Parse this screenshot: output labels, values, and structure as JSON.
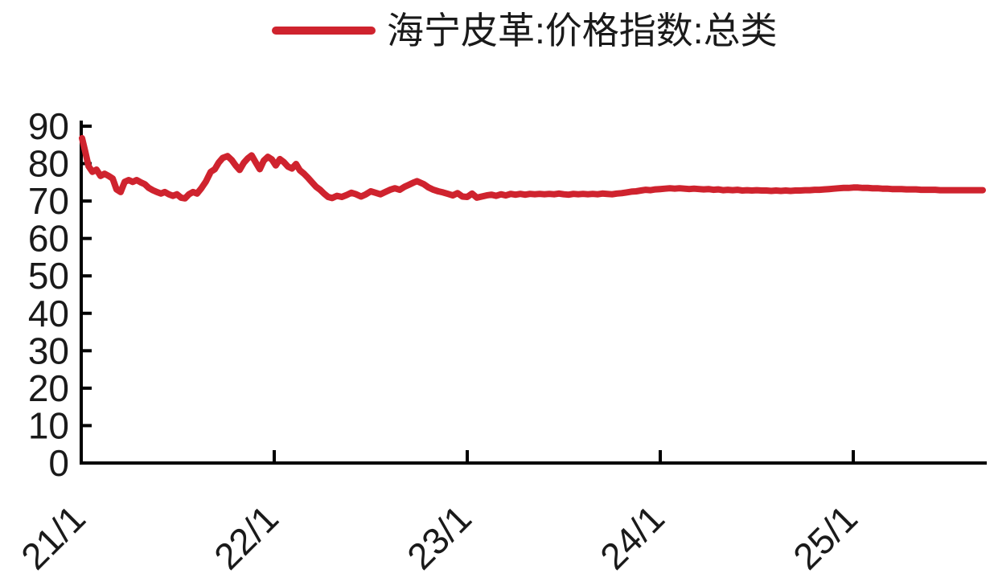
{
  "legend": {
    "label": "海宁皮革:价格指数:总类"
  },
  "colors": {
    "line": "#cf232e",
    "axis": "#000000",
    "text": "#1a1a1a",
    "background": "#ffffff"
  },
  "chart_data": {
    "type": "line",
    "title": "",
    "legend_position": "top-center",
    "grid": false,
    "x_axis": {
      "unit": "years since Jan 2021 (tick labels are year/month)",
      "range": [
        0,
        4.68
      ],
      "ticks": [
        {
          "t": 0,
          "label": "21/1"
        },
        {
          "t": 1,
          "label": "22/1"
        },
        {
          "t": 2,
          "label": "23/1"
        },
        {
          "t": 3,
          "label": "24/1"
        },
        {
          "t": 4,
          "label": "25/1"
        }
      ]
    },
    "y_axis": {
      "range": [
        0,
        90
      ],
      "tick_step": 10,
      "ticks": [
        0,
        10,
        20,
        30,
        40,
        50,
        60,
        70,
        80,
        90
      ]
    },
    "series": [
      {
        "name": "海宁皮革:价格指数:总类",
        "color": "#cf232e",
        "points": [
          [
            0.004,
            86.8
          ],
          [
            0.021,
            83.2
          ],
          [
            0.038,
            79.3
          ],
          [
            0.058,
            77.8
          ],
          [
            0.079,
            78.4
          ],
          [
            0.1,
            76.7
          ],
          [
            0.121,
            77.3
          ],
          [
            0.142,
            76.7
          ],
          [
            0.163,
            76.0
          ],
          [
            0.183,
            73.1
          ],
          [
            0.204,
            72.4
          ],
          [
            0.225,
            75.1
          ],
          [
            0.246,
            75.6
          ],
          [
            0.267,
            75.1
          ],
          [
            0.287,
            75.6
          ],
          [
            0.308,
            75.0
          ],
          [
            0.329,
            74.5
          ],
          [
            0.35,
            73.5
          ],
          [
            0.371,
            72.9
          ],
          [
            0.392,
            72.4
          ],
          [
            0.413,
            72.0
          ],
          [
            0.433,
            72.4
          ],
          [
            0.454,
            71.8
          ],
          [
            0.475,
            71.4
          ],
          [
            0.496,
            71.8
          ],
          [
            0.517,
            70.9
          ],
          [
            0.538,
            70.7
          ],
          [
            0.558,
            71.8
          ],
          [
            0.579,
            72.4
          ],
          [
            0.6,
            72.0
          ],
          [
            0.621,
            73.3
          ],
          [
            0.646,
            75.2
          ],
          [
            0.671,
            77.8
          ],
          [
            0.692,
            78.5
          ],
          [
            0.713,
            80.3
          ],
          [
            0.733,
            81.5
          ],
          [
            0.758,
            82.0
          ],
          [
            0.779,
            81.0
          ],
          [
            0.8,
            79.5
          ],
          [
            0.821,
            78.3
          ],
          [
            0.842,
            80.2
          ],
          [
            0.863,
            81.4
          ],
          [
            0.883,
            82.2
          ],
          [
            0.904,
            80.3
          ],
          [
            0.925,
            78.5
          ],
          [
            0.946,
            80.8
          ],
          [
            0.967,
            81.8
          ],
          [
            0.988,
            81.1
          ],
          [
            1.008,
            79.5
          ],
          [
            1.029,
            81.2
          ],
          [
            1.05,
            80.4
          ],
          [
            1.071,
            79.2
          ],
          [
            1.092,
            78.7
          ],
          [
            1.113,
            79.9
          ],
          [
            1.133,
            78.2
          ],
          [
            1.154,
            77.3
          ],
          [
            1.175,
            76.2
          ],
          [
            1.196,
            75.0
          ],
          [
            1.217,
            73.8
          ],
          [
            1.238,
            73.0
          ],
          [
            1.258,
            72.0
          ],
          [
            1.279,
            71.1
          ],
          [
            1.3,
            70.8
          ],
          [
            1.325,
            71.4
          ],
          [
            1.35,
            71.1
          ],
          [
            1.375,
            71.6
          ],
          [
            1.4,
            72.2
          ],
          [
            1.425,
            71.8
          ],
          [
            1.45,
            71.2
          ],
          [
            1.475,
            71.8
          ],
          [
            1.5,
            72.6
          ],
          [
            1.525,
            72.2
          ],
          [
            1.55,
            71.8
          ],
          [
            1.575,
            72.4
          ],
          [
            1.6,
            73.0
          ],
          [
            1.625,
            73.4
          ],
          [
            1.65,
            73.0
          ],
          [
            1.675,
            73.8
          ],
          [
            1.7,
            74.4
          ],
          [
            1.725,
            75.0
          ],
          [
            1.74,
            75.3
          ],
          [
            1.775,
            74.5
          ],
          [
            1.8,
            73.6
          ],
          [
            1.825,
            73.0
          ],
          [
            1.85,
            72.6
          ],
          [
            1.875,
            72.3
          ],
          [
            1.9,
            71.9
          ],
          [
            1.925,
            71.5
          ],
          [
            1.95,
            72.1
          ],
          [
            1.975,
            71.2
          ],
          [
            2.0,
            71.1
          ],
          [
            2.025,
            72.0
          ],
          [
            2.05,
            70.9
          ],
          [
            2.075,
            71.2
          ],
          [
            2.1,
            71.5
          ],
          [
            2.125,
            71.7
          ],
          [
            2.15,
            71.4
          ],
          [
            2.175,
            71.8
          ],
          [
            2.2,
            71.5
          ],
          [
            2.225,
            71.9
          ],
          [
            2.25,
            71.7
          ],
          [
            2.275,
            71.9
          ],
          [
            2.3,
            71.7
          ],
          [
            2.325,
            71.9
          ],
          [
            2.35,
            71.8
          ],
          [
            2.375,
            71.9
          ],
          [
            2.4,
            71.8
          ],
          [
            2.425,
            71.9
          ],
          [
            2.45,
            71.8
          ],
          [
            2.475,
            72.0
          ],
          [
            2.5,
            71.8
          ],
          [
            2.525,
            71.7
          ],
          [
            2.55,
            71.9
          ],
          [
            2.575,
            71.8
          ],
          [
            2.6,
            71.9
          ],
          [
            2.625,
            71.8
          ],
          [
            2.65,
            71.9
          ],
          [
            2.675,
            71.8
          ],
          [
            2.7,
            72.0
          ],
          [
            2.725,
            71.9
          ],
          [
            2.75,
            71.8
          ],
          [
            2.775,
            72.0
          ],
          [
            2.8,
            72.1
          ],
          [
            2.825,
            72.3
          ],
          [
            2.85,
            72.5
          ],
          [
            2.875,
            72.6
          ],
          [
            2.9,
            72.8
          ],
          [
            2.925,
            73.0
          ],
          [
            2.95,
            72.9
          ],
          [
            2.975,
            73.1
          ],
          [
            3.0,
            73.2
          ],
          [
            3.025,
            73.3
          ],
          [
            3.05,
            73.4
          ],
          [
            3.075,
            73.3
          ],
          [
            3.1,
            73.4
          ],
          [
            3.125,
            73.3
          ],
          [
            3.15,
            73.2
          ],
          [
            3.175,
            73.3
          ],
          [
            3.2,
            73.2
          ],
          [
            3.225,
            73.1
          ],
          [
            3.25,
            73.2
          ],
          [
            3.275,
            73.0
          ],
          [
            3.3,
            73.1
          ],
          [
            3.325,
            72.9
          ],
          [
            3.35,
            73.0
          ],
          [
            3.375,
            72.9
          ],
          [
            3.4,
            73.0
          ],
          [
            3.425,
            72.8
          ],
          [
            3.45,
            72.9
          ],
          [
            3.475,
            72.8
          ],
          [
            3.5,
            72.9
          ],
          [
            3.525,
            72.8
          ],
          [
            3.55,
            72.8
          ],
          [
            3.575,
            72.7
          ],
          [
            3.6,
            72.8
          ],
          [
            3.625,
            72.7
          ],
          [
            3.65,
            72.8
          ],
          [
            3.675,
            72.7
          ],
          [
            3.7,
            72.8
          ],
          [
            3.725,
            72.8
          ],
          [
            3.75,
            72.9
          ],
          [
            3.775,
            72.9
          ],
          [
            3.8,
            73.0
          ],
          [
            3.825,
            73.0
          ],
          [
            3.85,
            73.1
          ],
          [
            3.875,
            73.2
          ],
          [
            3.9,
            73.3
          ],
          [
            3.925,
            73.4
          ],
          [
            3.95,
            73.5
          ],
          [
            3.975,
            73.5
          ],
          [
            4.0,
            73.6
          ],
          [
            4.025,
            73.6
          ],
          [
            4.05,
            73.5
          ],
          [
            4.075,
            73.5
          ],
          [
            4.1,
            73.4
          ],
          [
            4.125,
            73.4
          ],
          [
            4.15,
            73.3
          ],
          [
            4.175,
            73.3
          ],
          [
            4.2,
            73.2
          ],
          [
            4.225,
            73.2
          ],
          [
            4.25,
            73.2
          ],
          [
            4.275,
            73.1
          ],
          [
            4.3,
            73.1
          ],
          [
            4.325,
            73.1
          ],
          [
            4.35,
            73.0
          ],
          [
            4.375,
            73.0
          ],
          [
            4.4,
            73.0
          ],
          [
            4.425,
            73.0
          ],
          [
            4.45,
            72.9
          ],
          [
            4.475,
            72.9
          ],
          [
            4.5,
            72.9
          ],
          [
            4.525,
            72.9
          ],
          [
            4.55,
            72.9
          ],
          [
            4.575,
            72.9
          ],
          [
            4.6,
            72.9
          ],
          [
            4.625,
            72.9
          ],
          [
            4.65,
            72.9
          ],
          [
            4.671,
            72.9
          ]
        ]
      }
    ]
  }
}
